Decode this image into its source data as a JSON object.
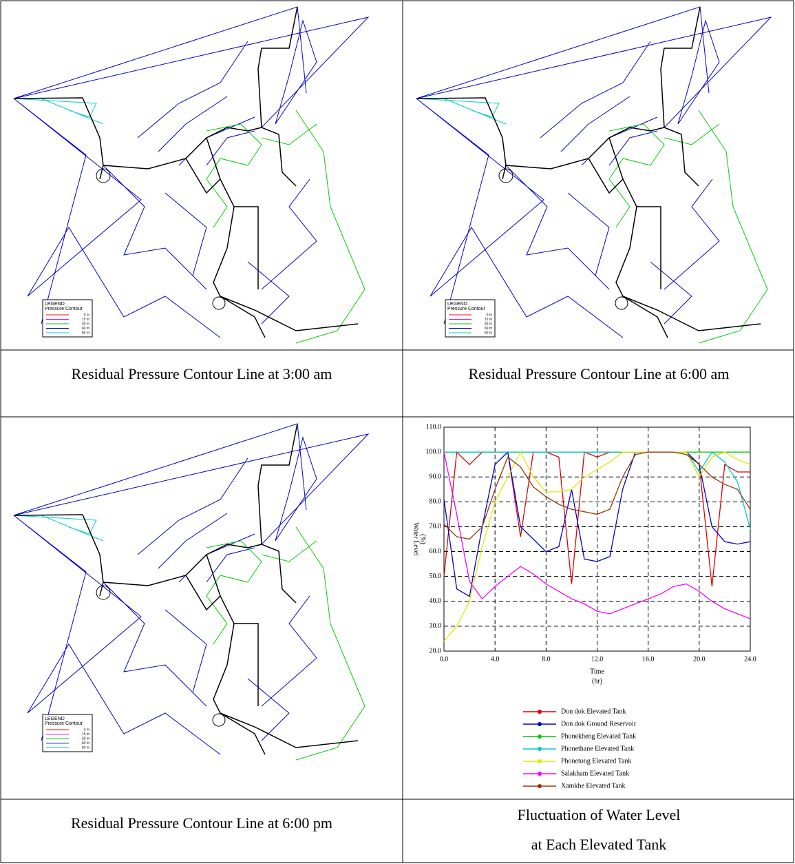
{
  "captions": [
    "Residual Pressure Contour Line at 3:00 am",
    "Residual Pressure Contour Line at 6:00 am",
    "Residual Pressure Contour Line at 6:00 pm",
    [
      "Fluctuation of Water Level",
      "at Each Elevated Tank"
    ]
  ],
  "map_legend": {
    "title": "LEGEND",
    "subtitle": "Pressure Contour",
    "entries": [
      {
        "label": "0 m",
        "color": "#ff0000"
      },
      {
        "label": "15 m",
        "color": "#ff00ff"
      },
      {
        "label": "30 m",
        "color": "#00cc00"
      },
      {
        "label": "60 m",
        "color": "#0000aa"
      },
      {
        "label": "60 m",
        "color": "#00cccc"
      }
    ]
  },
  "chart_data": {
    "type": "line",
    "xlabel": [
      "Time",
      "(hr)"
    ],
    "ylabel": [
      "Water Level",
      "(%)"
    ],
    "x": [
      0,
      1,
      2,
      3,
      4,
      5,
      6,
      7,
      8,
      9,
      10,
      11,
      12,
      13,
      14,
      15,
      16,
      17,
      18,
      19,
      20,
      21,
      22,
      23,
      24
    ],
    "xlim": [
      0,
      24
    ],
    "ylim": [
      20,
      110
    ],
    "xticks": [
      {
        "value": 0,
        "label": "0.0"
      },
      {
        "value": 4,
        "label": "4.0"
      },
      {
        "value": 8,
        "label": "8.0"
      },
      {
        "value": 12,
        "label": "12.0"
      },
      {
        "value": 16,
        "label": "16.0"
      },
      {
        "value": 20,
        "label": "20.0"
      },
      {
        "value": 24,
        "label": "24.0"
      }
    ],
    "yticks": [
      {
        "value": 20,
        "label": "20.0"
      },
      {
        "value": 30,
        "label": "30.0"
      },
      {
        "value": 40,
        "label": "40.0"
      },
      {
        "value": 50,
        "label": "50.0"
      },
      {
        "value": 60,
        "label": "60.0"
      },
      {
        "value": 70,
        "label": "70.0"
      },
      {
        "value": 80,
        "label": "80.0"
      },
      {
        "value": 90,
        "label": "90.0"
      },
      {
        "value": 100,
        "label": "100.0"
      },
      {
        "value": 110,
        "label": "110.0"
      }
    ],
    "grid": true,
    "series": [
      {
        "name": "Don dok Elevated Tank",
        "color": "#dd0000",
        "values": [
          50,
          100,
          95,
          100,
          100,
          100,
          66,
          100,
          100,
          98,
          47,
          100,
          98,
          100,
          100,
          100,
          100,
          100,
          100,
          100,
          95,
          46,
          95,
          92,
          92
        ]
      },
      {
        "name": "Don dok Ground Reservoir",
        "color": "#0000cc",
        "values": [
          81,
          45,
          42,
          70,
          95,
          100,
          70,
          65,
          60,
          62,
          85,
          57,
          56,
          58,
          85,
          100,
          100,
          100,
          100,
          100,
          95,
          70,
          64,
          63,
          64
        ]
      },
      {
        "name": "Phonekheng Elevated Tank",
        "color": "#00cc00",
        "values": [
          100,
          100,
          100,
          100,
          100,
          100,
          100,
          100,
          100,
          100,
          100,
          100,
          100,
          100,
          100,
          100,
          100,
          100,
          100,
          100,
          100,
          100,
          100,
          100,
          100
        ]
      },
      {
        "name": "Phonethane Elevated Tank",
        "color": "#00cccc",
        "values": [
          100,
          100,
          100,
          100,
          100,
          100,
          100,
          100,
          100,
          100,
          100,
          100,
          100,
          100,
          100,
          100,
          100,
          100,
          100,
          100,
          92,
          100,
          96,
          88,
          69
        ]
      },
      {
        "name": "Phonetong Elevated Tank",
        "color": "#e6e600",
        "values": [
          24,
          30,
          40,
          62,
          80,
          90,
          100,
          90,
          84,
          84,
          85,
          90,
          93,
          96,
          100,
          100,
          100,
          100,
          100,
          100,
          90,
          98,
          100,
          97,
          95
        ]
      },
      {
        "name": "Salakham Elevated Tank",
        "color": "#ff00ff",
        "values": [
          100,
          75,
          48,
          41,
          46,
          50,
          54,
          51,
          47,
          44,
          41,
          39,
          36,
          35,
          37,
          39,
          41,
          43,
          46,
          47,
          44,
          40,
          37,
          35,
          33
        ]
      },
      {
        "name": "Xamkhe Elevated Tank",
        "color": "#993300",
        "values": [
          71,
          66,
          65,
          70,
          85,
          98,
          94,
          86,
          82,
          79,
          77,
          76,
          75,
          77,
          90,
          99,
          100,
          100,
          100,
          99,
          95,
          90,
          87,
          85,
          77
        ]
      }
    ]
  }
}
